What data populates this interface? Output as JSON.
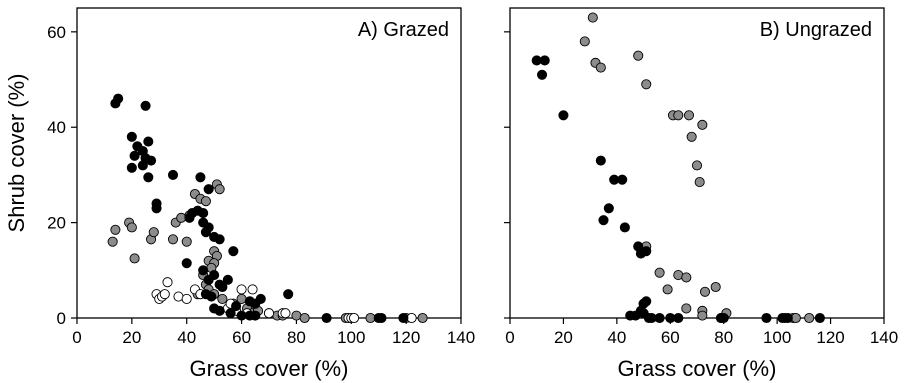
{
  "chart_data": [
    {
      "type": "scatter",
      "title": "A) Grazed",
      "xlabel": "Grass cover (%)",
      "ylabel": "Shrub cover (%)",
      "xlim": [
        0,
        140
      ],
      "ylim": [
        0,
        65
      ],
      "xticks": [
        0,
        20,
        40,
        60,
        80,
        100,
        120,
        140
      ],
      "yticks": [
        0,
        20,
        40,
        60
      ],
      "grid": false,
      "series": [
        {
          "fill": "#000000",
          "x": [
            14,
            15,
            25,
            20,
            21,
            24,
            22,
            26,
            25,
            24,
            20,
            27,
            26,
            29,
            29,
            35,
            45,
            48,
            46,
            41,
            42,
            44,
            46,
            48,
            50,
            52,
            47,
            40,
            57,
            46,
            50,
            48,
            55,
            52,
            53,
            47,
            49,
            58,
            65,
            63,
            67,
            77,
            50,
            52,
            56,
            60,
            63,
            65,
            91,
            110,
            111,
            119
          ],
          "y": [
            45,
            46,
            44.5,
            38,
            34,
            35,
            36,
            37,
            33.5,
            32,
            31.5,
            33,
            29.5,
            24,
            23,
            30,
            29.5,
            27,
            22,
            21,
            22,
            22.5,
            20,
            19,
            17,
            16.5,
            18,
            11.5,
            14,
            10,
            9,
            8,
            8,
            7,
            6.5,
            5,
            4.5,
            2.5,
            3,
            3.5,
            4,
            5,
            2,
            1.5,
            1,
            0.5,
            0.5,
            0.5,
            0,
            0,
            0,
            0
          ]
        },
        {
          "fill": "#8c8c8c",
          "x": [
            13,
            14,
            19,
            20,
            21,
            27,
            28,
            35,
            36,
            38,
            40,
            41,
            43,
            45,
            47,
            51,
            52,
            50,
            51,
            48,
            50,
            49,
            46,
            47,
            44,
            48,
            50,
            53,
            57,
            60,
            62,
            64,
            66,
            70,
            73,
            75,
            80,
            83,
            98,
            107,
            120,
            126
          ],
          "y": [
            16,
            18.5,
            20,
            19,
            12.5,
            16.5,
            18,
            16.5,
            20,
            21,
            16,
            21.5,
            26,
            25,
            24.5,
            28,
            27,
            14,
            13,
            12,
            11.5,
            10.5,
            9,
            7,
            5,
            6,
            5,
            4,
            3,
            4,
            2,
            1,
            1.5,
            1,
            0.5,
            0.5,
            0.5,
            0,
            0,
            0,
            0,
            0
          ]
        },
        {
          "fill": "#ffffff",
          "x": [
            29,
            30,
            31,
            32,
            33,
            37,
            40,
            43,
            45,
            55,
            56,
            58,
            60,
            62,
            64,
            70,
            75,
            76,
            99,
            100,
            101,
            122
          ],
          "y": [
            5,
            4,
            4.5,
            5,
            7.5,
            4.5,
            4,
            6,
            5,
            2,
            3,
            1.5,
            6,
            1,
            6,
            1,
            1,
            1,
            0,
            0,
            0,
            0
          ]
        }
      ]
    },
    {
      "type": "scatter",
      "title": "B) Ungrazed",
      "xlabel": "Grass cover (%)",
      "ylabel": "",
      "xlim": [
        0,
        140
      ],
      "ylim": [
        0,
        65
      ],
      "xticks": [
        0,
        20,
        40,
        60,
        80,
        100,
        120,
        140
      ],
      "yticks": [
        0,
        20,
        40,
        60
      ],
      "grid": false,
      "series": [
        {
          "fill": "#000000",
          "x": [
            10,
            12,
            13,
            20,
            34,
            35,
            37,
            39,
            42,
            43,
            48,
            49,
            51,
            49,
            50,
            51,
            47,
            45,
            50,
            52,
            53,
            56,
            60,
            63,
            79,
            80,
            96,
            102,
            103,
            104,
            116
          ],
          "y": [
            54,
            51,
            54,
            42.5,
            33,
            20.5,
            23,
            29,
            29,
            19,
            15,
            13.5,
            14,
            1.5,
            3,
            3.5,
            0.5,
            0.5,
            1,
            0,
            0,
            0,
            0,
            0,
            0,
            0,
            0,
            0,
            0,
            0,
            0
          ]
        },
        {
          "fill": "#8c8c8c",
          "x": [
            28,
            31,
            32,
            34,
            48,
            51,
            61,
            63,
            67,
            68,
            70,
            72,
            71,
            51,
            56,
            59,
            63,
            66,
            73,
            77,
            72,
            81,
            66,
            72,
            79,
            106,
            107,
            112
          ],
          "y": [
            58,
            63,
            53.5,
            52.5,
            55,
            49,
            42.5,
            42.5,
            42.5,
            38,
            32,
            40.5,
            28.5,
            15,
            9.5,
            6,
            9,
            8.5,
            5.5,
            6.5,
            1.5,
            1,
            2,
            0.5,
            0,
            0,
            0,
            0
          ]
        }
      ]
    }
  ]
}
